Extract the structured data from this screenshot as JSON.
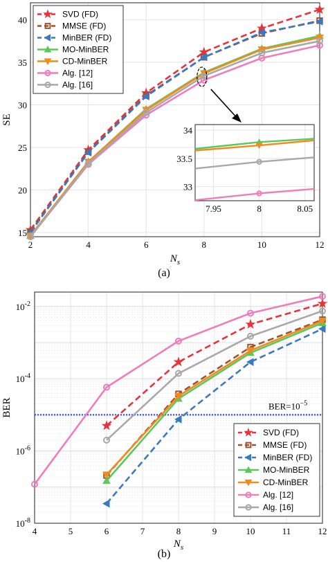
{
  "captions": [
    "(a)",
    "(b)"
  ],
  "colors": {
    "svd": "#e8323c",
    "mmse": "#a0522d",
    "minber": "#3a78c2",
    "mominber": "#5ac85a",
    "cdminber": "#f28a1e",
    "alg12": "#ee7cbe",
    "alg16": "#a8a8a8",
    "threshold": "#1f3fd0"
  },
  "chart_data": [
    {
      "type": "line",
      "id": "se",
      "xlabel_main": "N",
      "xlabel_sub": "s",
      "ylabel": "SE",
      "xlim": [
        2,
        12
      ],
      "ylim": [
        14.5,
        42
      ],
      "xticks": [
        2,
        4,
        6,
        8,
        10,
        12
      ],
      "yticks": [
        15,
        20,
        25,
        30,
        35,
        40
      ],
      "grid": true,
      "legend_position": "top-left",
      "series": [
        {
          "name": "SVD (FD)",
          "key": "svd",
          "marker": "star",
          "dash": "dashed",
          "x": [
            2,
            4,
            6,
            8,
            10,
            12
          ],
          "y": [
            15.3,
            24.7,
            31.4,
            36.2,
            39.0,
            41.2
          ]
        },
        {
          "name": "MMSE (FD)",
          "key": "mmse",
          "marker": "square",
          "dash": "dashed",
          "x": [
            2,
            4,
            6,
            8,
            10,
            12
          ],
          "y": [
            15.1,
            24.5,
            31.1,
            35.6,
            38.4,
            39.9
          ]
        },
        {
          "name": "MinBER (FD)",
          "key": "minber",
          "marker": "triangle-left",
          "dash": "dashed",
          "x": [
            2,
            4,
            6,
            8,
            10,
            12
          ],
          "y": [
            15.0,
            24.4,
            31.0,
            35.6,
            38.5,
            39.8
          ]
        },
        {
          "name": "MO-MinBER",
          "key": "mominber",
          "marker": "triangle-up",
          "dash": "solid",
          "x": [
            2,
            4,
            6,
            8,
            10,
            12
          ],
          "y": [
            14.6,
            23.3,
            29.5,
            33.8,
            36.6,
            38.1
          ]
        },
        {
          "name": "CD-MinBER",
          "key": "cdminber",
          "marker": "triangle-down",
          "dash": "solid",
          "x": [
            2,
            4,
            6,
            8,
            10,
            12
          ],
          "y": [
            14.6,
            23.3,
            29.4,
            33.7,
            36.5,
            37.9
          ]
        },
        {
          "name": "Alg. [12]",
          "key": "alg12",
          "marker": "circle",
          "dash": "solid",
          "x": [
            2,
            4,
            6,
            8,
            10,
            12
          ],
          "y": [
            14.5,
            23.0,
            28.8,
            32.9,
            35.5,
            37.0
          ]
        },
        {
          "name": "Alg. [16]",
          "key": "alg16",
          "marker": "circle",
          "dash": "solid",
          "x": [
            2,
            4,
            6,
            8,
            10,
            12
          ],
          "y": [
            14.5,
            23.1,
            29.1,
            33.4,
            36.1,
            37.5
          ]
        }
      ],
      "inset": {
        "xlim": [
          7.93,
          8.06
        ],
        "ylim": [
          32.75,
          34.1
        ],
        "xticks": [
          7.95,
          8,
          8.05
        ],
        "yticks": [
          33,
          33.5,
          34
        ],
        "series": [
          {
            "key": "mominber",
            "marker": "triangle-up",
            "x": [
              7.93,
              8.0,
              8.06
            ],
            "y": [
              33.67,
              33.79,
              33.85
            ]
          },
          {
            "key": "cdminber",
            "marker": "triangle-down",
            "x": [
              7.93,
              8.0,
              8.06
            ],
            "y": [
              33.64,
              33.73,
              33.82
            ]
          },
          {
            "key": "alg16",
            "marker": "circle",
            "x": [
              7.93,
              8.0,
              8.06
            ],
            "y": [
              33.32,
              33.44,
              33.52
            ]
          },
          {
            "key": "alg12",
            "marker": "circle",
            "x": [
              7.93,
              8.0,
              8.06
            ],
            "y": [
              32.76,
              32.88,
              32.96
            ]
          }
        ]
      }
    },
    {
      "type": "line",
      "id": "ber",
      "xlabel_main": "N",
      "xlabel_sub": "s",
      "ylabel": "BER",
      "log_y": true,
      "xlim": [
        4,
        12
      ],
      "ylim": [
        1e-08,
        0.025
      ],
      "xticks": [
        4,
        5,
        6,
        7,
        8,
        9,
        10,
        11,
        12
      ],
      "yticks": [
        -8,
        -6,
        -4,
        -2
      ],
      "grid": true,
      "legend_position": "bottom-right",
      "threshold_label": "BER=10",
      "threshold_exp": "−5",
      "threshold_value": 1e-05,
      "series": [
        {
          "name": "SVD (FD)",
          "key": "svd",
          "marker": "star",
          "dash": "dashed",
          "x": [
            6,
            8,
            10,
            12
          ],
          "y": [
            5e-06,
            0.00029,
            0.0032,
            0.012
          ]
        },
        {
          "name": "MMSE (FD)",
          "key": "mmse",
          "marker": "square",
          "dash": "dashed",
          "x": [
            6,
            8,
            10,
            12
          ],
          "y": [
            2.1e-07,
            3.8e-05,
            0.00075,
            0.0043
          ]
        },
        {
          "name": "MinBER (FD)",
          "key": "minber",
          "marker": "triangle-left",
          "dash": "dashed",
          "x": [
            6,
            8,
            10,
            12
          ],
          "y": [
            3.5e-08,
            7.5e-06,
            0.00029,
            0.0024
          ]
        },
        {
          "name": "MO-MinBER",
          "key": "mominber",
          "marker": "triangle-up",
          "dash": "solid",
          "x": [
            6,
            8,
            10,
            12
          ],
          "y": [
            1.5e-07,
            2.8e-05,
            0.00052,
            0.0035
          ]
        },
        {
          "name": "CD-MinBER",
          "key": "cdminber",
          "marker": "triangle-down",
          "dash": "solid",
          "x": [
            6,
            8,
            10,
            12
          ],
          "y": [
            2.2e-07,
            3.3e-05,
            0.0006,
            0.004
          ]
        },
        {
          "name": "Alg. [12]",
          "key": "alg12",
          "marker": "circle",
          "dash": "solid",
          "x": [
            4,
            6,
            8,
            10,
            12
          ],
          "y": [
            1.2e-07,
            5.8e-05,
            0.0011,
            0.0065,
            0.019
          ]
        },
        {
          "name": "Alg. [16]",
          "key": "alg16",
          "marker": "circle",
          "dash": "solid",
          "x": [
            6,
            8,
            10,
            12
          ],
          "y": [
            2e-06,
            0.00014,
            0.0015,
            0.0075
          ]
        }
      ]
    }
  ]
}
